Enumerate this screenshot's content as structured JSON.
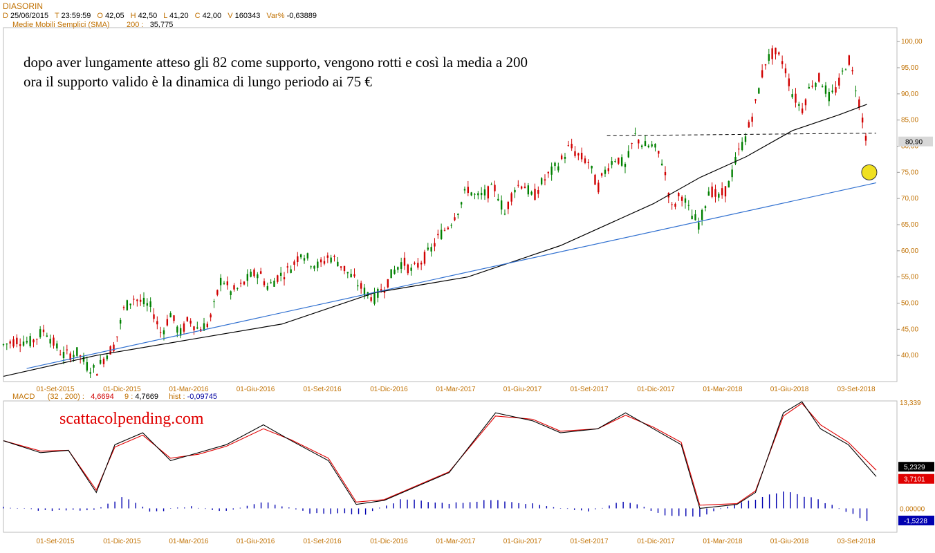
{
  "header": {
    "title": "DIASORIN",
    "date_label": "D",
    "date": "25/06/2015",
    "time_label": "T",
    "time": "23:59:59",
    "open_label": "O",
    "open": "42,05",
    "high_label": "H",
    "high": "42,50",
    "low_label": "L",
    "low": "41,20",
    "close_label": "C",
    "close": "42,00",
    "volume_label": "V",
    "volume": "160343",
    "var_label": "Var%",
    "var": "-0,63889"
  },
  "sma": {
    "label": "Medie Mobili Semplici (SMA)",
    "period": "200 :",
    "value": "35,775"
  },
  "macd": {
    "label": "MACD",
    "params": "(32 , 200) :",
    "macd_value": "4,6694",
    "signal_label": "9 :",
    "signal_value": "4,7669",
    "hist_label": "hist :",
    "hist_value": "-0,09745"
  },
  "annotation": {
    "line1": "dopo aver lungamente atteso gli 82 come supporto, vengono rotti e così la media a 200",
    "line2": "ora il supporto valido è la dinamica di lungo periodo ai 75 €"
  },
  "watermark": "scattacolpending.com",
  "colors": {
    "up": "#008000",
    "down": "#d00000",
    "sma": "#000000",
    "trendline": "#3070d0",
    "macd": "#000000",
    "signal": "#e00000",
    "hist": "#0000b0",
    "axis_text": "#c07000",
    "marker": "#f0e020"
  },
  "chart_data": [
    {
      "type": "candlestick",
      "x_ticks": [
        "01-Set-2015",
        "01-Dic-2015",
        "01-Mar-2016",
        "01-Giu-2016",
        "01-Set-2016",
        "01-Dic-2016",
        "01-Mar-2017",
        "01-Giu-2017",
        "01-Set-2017",
        "01-Dic-2017",
        "01-Mar-2018",
        "01-Giu-2018",
        "03-Set-2018"
      ],
      "y_ticks": [
        "40,00",
        "45,00",
        "50,00",
        "55,00",
        "60,00",
        "65,00",
        "70,00",
        "75,00",
        "80,00",
        "85,00",
        "90,00",
        "95,00",
        "100,00"
      ],
      "ylim": [
        35,
        102
      ],
      "last_price_label": "80,90",
      "close_path": [
        [
          0,
          42
        ],
        [
          3,
          43
        ],
        [
          6,
          42.5
        ],
        [
          9,
          45
        ],
        [
          11,
          42
        ],
        [
          13,
          40
        ],
        [
          16,
          40.5
        ],
        [
          18,
          38
        ],
        [
          20,
          37
        ],
        [
          22,
          40
        ],
        [
          24,
          42
        ],
        [
          26,
          49
        ],
        [
          28,
          51
        ],
        [
          30,
          50
        ],
        [
          32,
          49
        ],
        [
          34,
          44
        ],
        [
          36,
          48
        ],
        [
          38,
          44
        ],
        [
          40,
          47
        ],
        [
          42,
          45
        ],
        [
          44,
          46
        ],
        [
          45,
          48
        ],
        [
          47,
          55
        ],
        [
          49,
          52
        ],
        [
          51,
          53
        ],
        [
          53,
          55
        ],
        [
          55,
          56
        ],
        [
          57,
          53
        ],
        [
          59,
          55
        ],
        [
          61,
          56
        ],
        [
          63,
          58
        ],
        [
          64,
          60
        ],
        [
          66,
          58
        ],
        [
          68,
          57
        ],
        [
          70,
          59
        ],
        [
          72,
          58
        ],
        [
          74,
          56
        ],
        [
          76,
          54
        ],
        [
          78,
          52
        ],
        [
          80,
          51
        ],
        [
          82,
          53
        ],
        [
          84,
          56
        ],
        [
          86,
          58
        ],
        [
          88,
          56
        ],
        [
          90,
          58
        ],
        [
          92,
          60
        ],
        [
          94,
          63
        ],
        [
          96,
          65
        ],
        [
          98,
          68
        ],
        [
          100,
          72
        ],
        [
          102,
          70
        ],
        [
          104,
          71
        ],
        [
          106,
          72
        ],
        [
          108,
          67
        ],
        [
          110,
          72
        ],
        [
          112,
          73
        ],
        [
          114,
          70
        ],
        [
          116,
          73
        ],
        [
          118,
          75
        ],
        [
          120,
          77
        ],
        [
          122,
          80
        ],
        [
          124,
          78
        ],
        [
          126,
          77
        ],
        [
          128,
          72
        ],
        [
          130,
          76
        ],
        [
          132,
          78
        ],
        [
          134,
          76
        ],
        [
          136,
          82
        ],
        [
          138,
          80
        ],
        [
          140,
          80
        ],
        [
          142,
          77
        ],
        [
          144,
          68
        ],
        [
          146,
          71
        ],
        [
          148,
          67
        ],
        [
          150,
          65
        ],
        [
          152,
          72
        ],
        [
          154,
          70
        ],
        [
          156,
          72
        ],
        [
          158,
          78
        ],
        [
          160,
          82
        ],
        [
          162,
          88
        ],
        [
          164,
          96
        ],
        [
          166,
          98
        ],
        [
          168,
          96
        ],
        [
          170,
          90
        ],
        [
          172,
          87
        ],
        [
          174,
          92
        ],
        [
          176,
          93
        ],
        [
          178,
          89
        ],
        [
          180,
          92
        ],
        [
          182,
          97
        ],
        [
          184,
          90
        ],
        [
          186,
          80.9
        ]
      ],
      "sma_200_path": [
        [
          0,
          36
        ],
        [
          20,
          40
        ],
        [
          40,
          43
        ],
        [
          60,
          46
        ],
        [
          80,
          52
        ],
        [
          100,
          55
        ],
        [
          120,
          61
        ],
        [
          140,
          69
        ],
        [
          150,
          74
        ],
        [
          160,
          78
        ],
        [
          170,
          83
        ],
        [
          180,
          86
        ],
        [
          186,
          88
        ]
      ],
      "trendline": {
        "from": [
          5,
          37.5
        ],
        "to": [
          188,
          73
        ]
      },
      "resistance_line": {
        "from": [
          130,
          82
        ],
        "to": [
          188,
          82.5
        ]
      },
      "marker_value": 75
    },
    {
      "type": "line",
      "name": "MACD",
      "y_ticks": [
        "13,339",
        "0,00000"
      ],
      "right_labels": [
        "5,2329",
        "3,7101",
        "-1,5228"
      ],
      "ylim": [
        -3,
        13.5
      ],
      "series": [
        {
          "name": "MACD",
          "values": [
            [
              0,
              8.5
            ],
            [
              8,
              7
            ],
            [
              14,
              7.3
            ],
            [
              20,
              2
            ],
            [
              24,
              8
            ],
            [
              30,
              9.5
            ],
            [
              36,
              6
            ],
            [
              42,
              7
            ],
            [
              48,
              8
            ],
            [
              56,
              10.5
            ],
            [
              62,
              8.5
            ],
            [
              70,
              6
            ],
            [
              76,
              0.5
            ],
            [
              82,
              1
            ],
            [
              90,
              3
            ],
            [
              96,
              4.5
            ],
            [
              106,
              12
            ],
            [
              114,
              11
            ],
            [
              120,
              9.5
            ],
            [
              128,
              10
            ],
            [
              134,
              12
            ],
            [
              140,
              10
            ],
            [
              146,
              8
            ],
            [
              150,
              0
            ],
            [
              158,
              0.5
            ],
            [
              162,
              2
            ],
            [
              168,
              12
            ],
            [
              172,
              13.4
            ],
            [
              176,
              10
            ],
            [
              182,
              8
            ],
            [
              188,
              4
            ]
          ]
        },
        {
          "name": "signal",
          "values": [
            [
              0,
              8.5
            ],
            [
              8,
              7.2
            ],
            [
              14,
              7.3
            ],
            [
              20,
              2.3
            ],
            [
              24,
              7.7
            ],
            [
              30,
              9.2
            ],
            [
              36,
              6.3
            ],
            [
              42,
              6.8
            ],
            [
              48,
              7.8
            ],
            [
              56,
              10
            ],
            [
              62,
              8.6
            ],
            [
              70,
              6.3
            ],
            [
              76,
              0.8
            ],
            [
              82,
              1.1
            ],
            [
              90,
              3.1
            ],
            [
              96,
              4.6
            ],
            [
              106,
              11.6
            ],
            [
              114,
              11.2
            ],
            [
              120,
              9.7
            ],
            [
              128,
              10
            ],
            [
              134,
              11.7
            ],
            [
              140,
              10.2
            ],
            [
              146,
              8.3
            ],
            [
              150,
              0.4
            ],
            [
              158,
              0.6
            ],
            [
              162,
              2.2
            ],
            [
              168,
              11.6
            ],
            [
              172,
              13.2
            ],
            [
              176,
              10.5
            ],
            [
              182,
              8.3
            ],
            [
              188,
              4.8
            ]
          ]
        },
        {
          "name": "hist",
          "values": [
            [
              0,
              0.1
            ],
            [
              10,
              -0.3
            ],
            [
              20,
              -0.2
            ],
            [
              26,
              1.5
            ],
            [
              32,
              -0.5
            ],
            [
              40,
              0.3
            ],
            [
              48,
              -0.4
            ],
            [
              56,
              0.8
            ],
            [
              66,
              -0.6
            ],
            [
              78,
              -0.7
            ],
            [
              86,
              1.2
            ],
            [
              96,
              0.6
            ],
            [
              106,
              1.1
            ],
            [
              116,
              0.4
            ],
            [
              126,
              -0.4
            ],
            [
              134,
              1
            ],
            [
              142,
              -0.8
            ],
            [
              150,
              -1
            ],
            [
              158,
              0.5
            ],
            [
              168,
              2.2
            ],
            [
              176,
              1
            ],
            [
              186,
              -1.5
            ]
          ]
        }
      ]
    }
  ]
}
